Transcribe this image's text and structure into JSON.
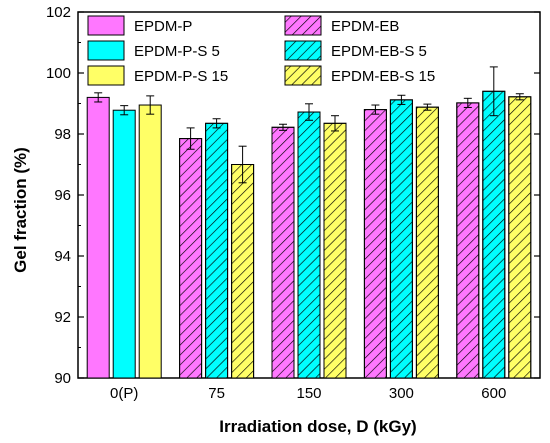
{
  "chart_data": {
    "type": "bar",
    "xlabel": "Irradiation dose, D (kGy)",
    "ylabel": "Gel fraction (%)",
    "ylim": [
      90,
      102
    ],
    "yticks": [
      90,
      92,
      94,
      96,
      98,
      100,
      102
    ],
    "grid": false,
    "legend_position": "top",
    "categories": [
      {
        "label": "0(P)",
        "series": [
          "EPDM-P",
          "EPDM-P-S 5",
          "EPDM-P-S 15"
        ]
      },
      {
        "label": "75",
        "series": [
          "EPDM-EB",
          "EPDM-EB-S 5",
          "EPDM-EB-S 15"
        ]
      },
      {
        "label": "150",
        "series": [
          "EPDM-EB",
          "EPDM-EB-S 5",
          "EPDM-EB-S 15"
        ]
      },
      {
        "label": "300",
        "series": [
          "EPDM-EB",
          "EPDM-EB-S 5",
          "EPDM-EB-S 15"
        ]
      },
      {
        "label": "600",
        "series": [
          "EPDM-EB",
          "EPDM-EB-S 5",
          "EPDM-EB-S 15"
        ]
      }
    ],
    "series": [
      {
        "name": "EPDM-P",
        "color": "#ff77ff",
        "hatch": false,
        "values": [
          99.2,
          null,
          null,
          null,
          null
        ],
        "errors": [
          0.15,
          null,
          null,
          null,
          null
        ]
      },
      {
        "name": "EPDM-EB",
        "color": "#ff77ff",
        "hatch": true,
        "values": [
          null,
          97.85,
          98.22,
          98.8,
          99.02
        ],
        "errors": [
          null,
          0.35,
          0.1,
          0.15,
          0.15
        ]
      },
      {
        "name": "EPDM-P-S 5",
        "color": "#00ffff",
        "hatch": false,
        "values": [
          98.78,
          null,
          null,
          null,
          null
        ],
        "errors": [
          0.15,
          null,
          null,
          null,
          null
        ]
      },
      {
        "name": "EPDM-EB-S 5",
        "color": "#00ffff",
        "hatch": true,
        "values": [
          null,
          98.35,
          98.72,
          99.12,
          99.4
        ],
        "errors": [
          null,
          0.15,
          0.27,
          0.15,
          0.8
        ]
      },
      {
        "name": "EPDM-P-S 15",
        "color": "#ffff66",
        "hatch": false,
        "values": [
          98.95,
          null,
          null,
          null,
          null
        ],
        "errors": [
          0.3,
          null,
          null,
          null,
          null
        ]
      },
      {
        "name": "EPDM-EB-S 15",
        "color": "#ffff66",
        "hatch": true,
        "values": [
          null,
          97.0,
          98.35,
          98.88,
          99.22
        ],
        "errors": [
          null,
          0.6,
          0.25,
          0.1,
          0.1
        ]
      }
    ]
  }
}
